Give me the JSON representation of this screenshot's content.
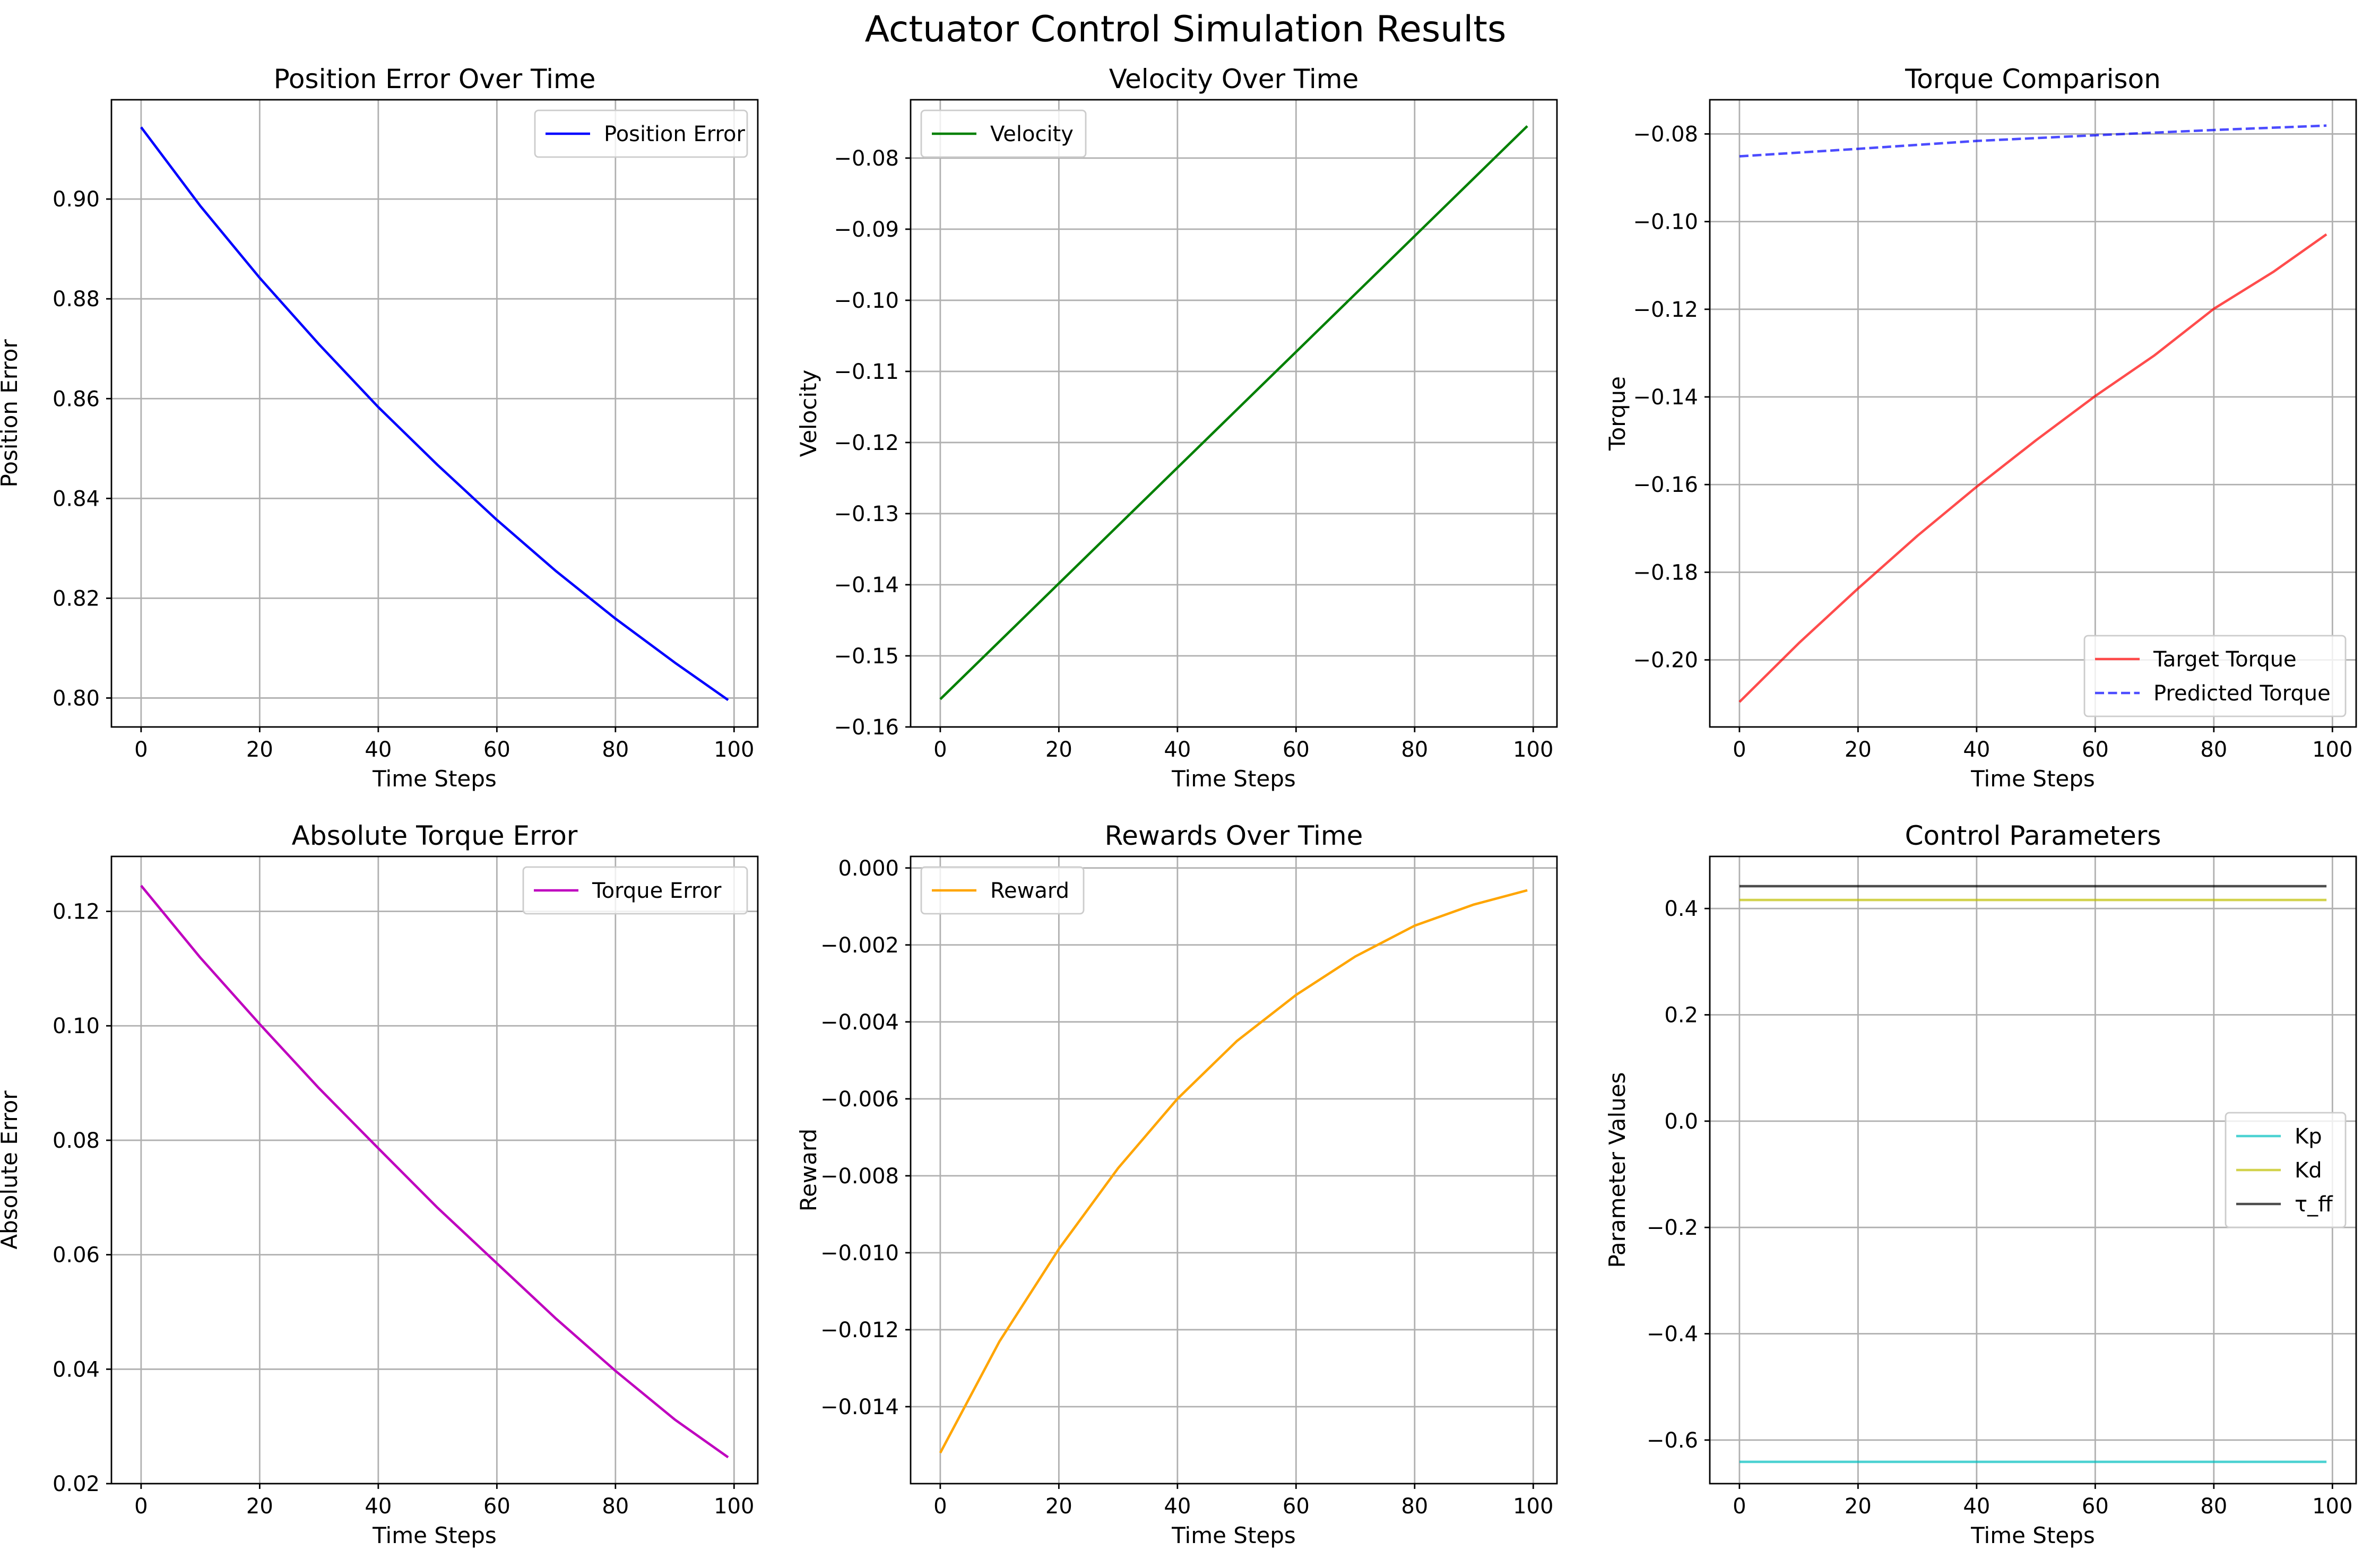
{
  "figure": {
    "title": "Actuator Control Simulation Results"
  },
  "chart_data": [
    {
      "type": "line",
      "title": "Position Error Over Time",
      "xlabel": "Time Steps",
      "ylabel": "Position Error",
      "xlim": [
        -5,
        104
      ],
      "ylim": [
        0.7942,
        0.9199
      ],
      "xticks": [
        0,
        20,
        40,
        60,
        80,
        100
      ],
      "xtick_labels": [
        "0",
        "20",
        "40",
        "60",
        "80",
        "100"
      ],
      "yticks": [
        0.8,
        0.82,
        0.84,
        0.86,
        0.88,
        0.9
      ],
      "ytick_labels": [
        "0.80",
        "0.82",
        "0.84",
        "0.86",
        "0.88",
        "0.90"
      ],
      "grid": true,
      "legend": "upper right",
      "series": [
        {
          "name": "Position Error",
          "color": "#0000ff",
          "dash": "solid",
          "x": [
            0,
            10,
            20,
            30,
            40,
            50,
            60,
            70,
            80,
            90,
            99
          ],
          "y": [
            0.9144,
            0.8986,
            0.8842,
            0.8709,
            0.8583,
            0.8467,
            0.8357,
            0.8254,
            0.8159,
            0.8071,
            0.7996
          ]
        }
      ]
    },
    {
      "type": "line",
      "title": "Velocity Over Time",
      "xlabel": "Time Steps",
      "ylabel": "Velocity",
      "xlim": [
        -5,
        104
      ],
      "ylim": [
        -0.16,
        -0.0718
      ],
      "xticks": [
        0,
        20,
        40,
        60,
        80,
        100
      ],
      "xtick_labels": [
        "0",
        "20",
        "40",
        "60",
        "80",
        "100"
      ],
      "yticks": [
        -0.16,
        -0.15,
        -0.14,
        -0.13,
        -0.12,
        -0.11,
        -0.1,
        -0.09,
        -0.08
      ],
      "ytick_labels": [
        "−0.16",
        "−0.15",
        "−0.14",
        "−0.13",
        "−0.12",
        "−0.11",
        "−0.10",
        "−0.09",
        "−0.08"
      ],
      "grid": true,
      "legend": "upper left",
      "series": [
        {
          "name": "Velocity",
          "color": "#008000",
          "dash": "solid",
          "x": [
            0,
            99
          ],
          "y": [
            -0.1561,
            -0.0755
          ]
        }
      ]
    },
    {
      "type": "line",
      "title": "Torque Comparison",
      "xlabel": "Time Steps",
      "ylabel": "Torque",
      "xlim": [
        -5,
        104
      ],
      "ylim": [
        -0.2153,
        -0.0722
      ],
      "xticks": [
        0,
        20,
        40,
        60,
        80,
        100
      ],
      "xtick_labels": [
        "0",
        "20",
        "40",
        "60",
        "80",
        "100"
      ],
      "yticks": [
        -0.2,
        -0.18,
        -0.16,
        -0.14,
        -0.12,
        -0.1,
        -0.08
      ],
      "ytick_labels": [
        "−0.20",
        "−0.18",
        "−0.16",
        "−0.14",
        "−0.12",
        "−0.10",
        "−0.08"
      ],
      "grid": true,
      "legend": "lower right",
      "series": [
        {
          "name": "Target Torque",
          "color": "#ff0000",
          "opacity": 0.7,
          "dash": "solid",
          "x": [
            0,
            10,
            20,
            30,
            40,
            50,
            60,
            70,
            80,
            90,
            99
          ],
          "y": [
            -0.2096,
            -0.1962,
            -0.1837,
            -0.1717,
            -0.1605,
            -0.1499,
            -0.1398,
            -0.1305,
            -0.1199,
            -0.1115,
            -0.1029
          ]
        },
        {
          "name": "Predicted Torque",
          "color": "#0000ff",
          "opacity": 0.7,
          "dash": "dashed",
          "x": [
            0,
            20,
            40,
            60,
            80,
            99
          ],
          "y": [
            -0.0851,
            -0.0834,
            -0.0816,
            -0.0803,
            -0.0791,
            -0.0781
          ]
        }
      ]
    },
    {
      "type": "line",
      "title": "Absolute Torque Error",
      "xlabel": "Time Steps",
      "ylabel": "Absolute Error",
      "xlim": [
        -5,
        104
      ],
      "ylim": [
        0.02,
        0.1296
      ],
      "xticks": [
        0,
        20,
        40,
        60,
        80,
        100
      ],
      "xtick_labels": [
        "0",
        "20",
        "40",
        "60",
        "80",
        "100"
      ],
      "yticks": [
        0.02,
        0.04,
        0.06,
        0.08,
        0.1,
        0.12
      ],
      "ytick_labels": [
        "0.02",
        "0.04",
        "0.06",
        "0.08",
        "0.10",
        "0.12"
      ],
      "grid": true,
      "legend": "upper right",
      "series": [
        {
          "name": "Torque Error",
          "color": "#bf00bf",
          "dash": "solid",
          "x": [
            0,
            10,
            20,
            30,
            40,
            50,
            60,
            70,
            80,
            90,
            99
          ],
          "y": [
            0.1245,
            0.1119,
            0.1003,
            0.0891,
            0.0786,
            0.0682,
            0.0585,
            0.0488,
            0.0397,
            0.0312,
            0.0246
          ]
        }
      ]
    },
    {
      "type": "line",
      "title": "Rewards Over Time",
      "xlabel": "Time Steps",
      "ylabel": "Reward",
      "xlim": [
        -5,
        104
      ],
      "ylim": [
        -0.016,
        0.0003
      ],
      "xticks": [
        0,
        20,
        40,
        60,
        80,
        100
      ],
      "xtick_labels": [
        "0",
        "20",
        "40",
        "60",
        "80",
        "100"
      ],
      "yticks": [
        -0.014,
        -0.012,
        -0.01,
        -0.008,
        -0.006,
        -0.004,
        -0.002,
        0.0
      ],
      "ytick_labels": [
        "−0.014",
        "−0.012",
        "−0.010",
        "−0.008",
        "−0.006",
        "−0.004",
        "−0.002",
        "0.000"
      ],
      "grid": true,
      "legend": "upper left",
      "series": [
        {
          "name": "Reward",
          "color": "#ffa500",
          "dash": "solid",
          "x": [
            0,
            10,
            20,
            30,
            40,
            50,
            60,
            70,
            80,
            90,
            99
          ],
          "y": [
            -0.0152,
            -0.0123,
            -0.0099,
            -0.0078,
            -0.006,
            -0.0045,
            -0.0033,
            -0.0023,
            -0.0015,
            -0.00095,
            -0.00058
          ]
        }
      ]
    },
    {
      "type": "line",
      "title": "Control Parameters",
      "xlabel": "Time Steps",
      "ylabel": "Parameter Values",
      "xlim": [
        -5,
        104
      ],
      "ylim": [
        -0.682,
        0.498
      ],
      "xticks": [
        0,
        20,
        40,
        60,
        80,
        100
      ],
      "xtick_labels": [
        "0",
        "20",
        "40",
        "60",
        "80",
        "100"
      ],
      "yticks": [
        -0.6,
        -0.4,
        -0.2,
        0.0,
        0.2,
        0.4
      ],
      "ytick_labels": [
        "−0.6",
        "−0.4",
        "−0.2",
        "0.0",
        "0.2",
        "0.4"
      ],
      "grid": true,
      "legend": "center right",
      "series": [
        {
          "name": "Kp",
          "color": "#00bfbf",
          "opacity": 0.7,
          "dash": "solid",
          "x": [
            0,
            99
          ],
          "y": [
            -0.641,
            -0.641
          ]
        },
        {
          "name": "Kd",
          "color": "#bfbf00",
          "opacity": 0.7,
          "dash": "solid",
          "x": [
            0,
            99
          ],
          "y": [
            0.416,
            0.416
          ]
        },
        {
          "name": "τ_ff",
          "color": "#000000",
          "opacity": 0.7,
          "dash": "solid",
          "x": [
            0,
            99
          ],
          "y": [
            0.442,
            0.442
          ]
        }
      ]
    }
  ]
}
